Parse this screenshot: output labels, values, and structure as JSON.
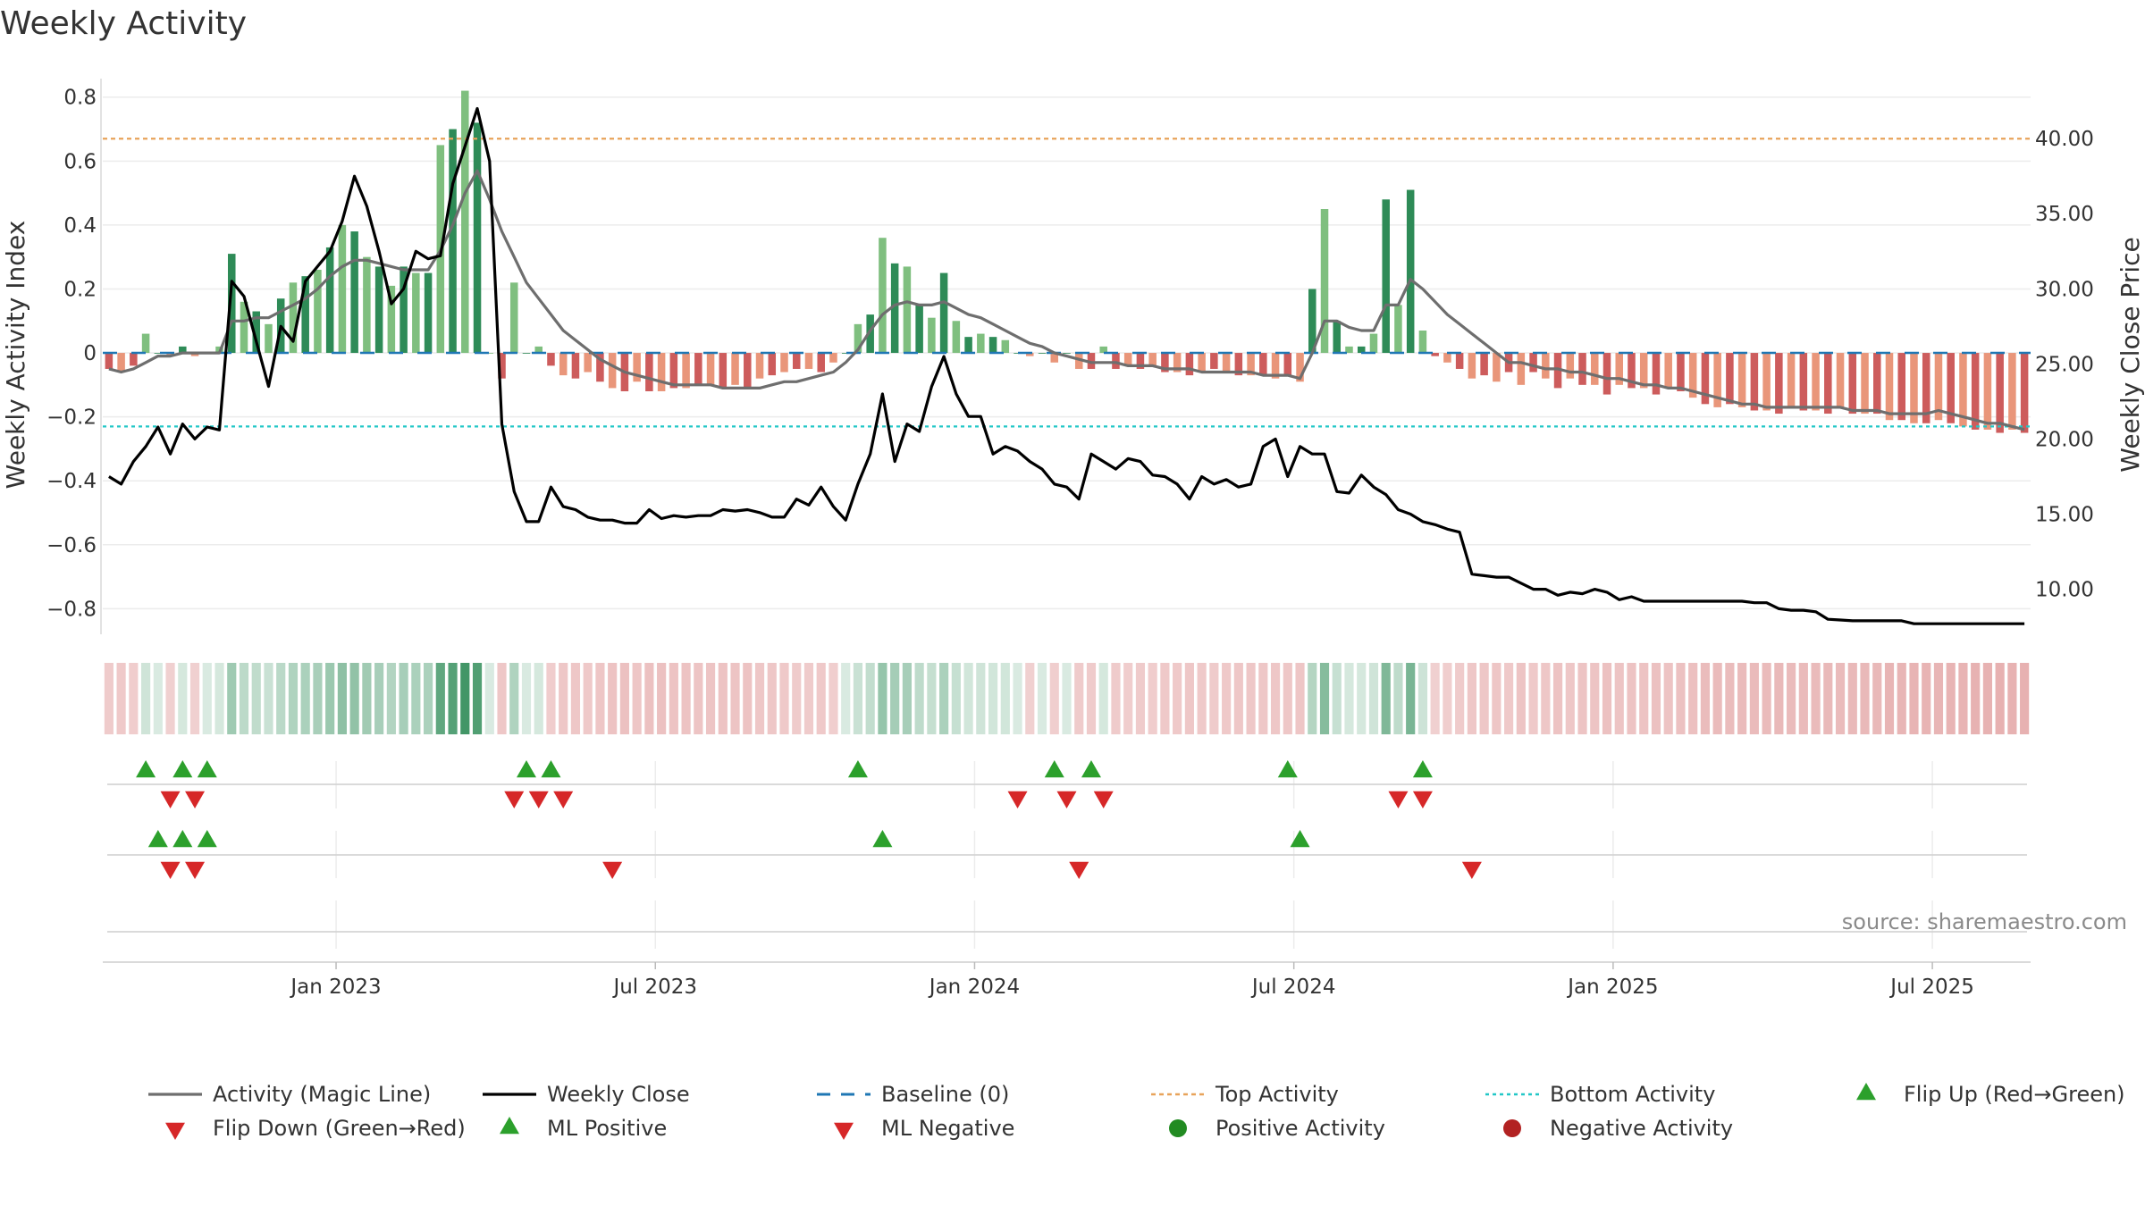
{
  "chart_data": {
    "type": "bar",
    "title": "Weekly Activity",
    "ylabel_left": "Weekly Activity Index",
    "ylabel_right": "Weekly Close Price",
    "ylim_left": [
      -0.88,
      0.83
    ],
    "ylim_right": [
      7.0,
      43.4
    ],
    "yticks_left": [
      {
        "v": 0.8,
        "label": "0.8"
      },
      {
        "v": 0.6,
        "label": "0.6"
      },
      {
        "v": 0.4,
        "label": "0.4"
      },
      {
        "v": 0.2,
        "label": "0.2"
      },
      {
        "v": 0,
        "label": "0"
      },
      {
        "v": -0.2,
        "label": "−0.2"
      },
      {
        "v": -0.4,
        "label": "−0.4"
      },
      {
        "v": -0.6,
        "label": "−0.6"
      },
      {
        "v": -0.8,
        "label": "−0.8"
      }
    ],
    "yticks_right": [
      {
        "v": 40,
        "label": "40.00"
      },
      {
        "v": 35,
        "label": "35.00"
      },
      {
        "v": 30,
        "label": "30.00"
      },
      {
        "v": 25,
        "label": "25.00"
      },
      {
        "v": 20,
        "label": "20.00"
      },
      {
        "v": 15,
        "label": "15.00"
      },
      {
        "v": 10,
        "label": "10.00"
      }
    ],
    "xticks": [
      {
        "week": 18.5,
        "label": "Jan 2023"
      },
      {
        "week": 44.5,
        "label": "Jul 2023"
      },
      {
        "week": 70.5,
        "label": "Jan 2024"
      },
      {
        "week": 96.5,
        "label": "Jul 2024"
      },
      {
        "week": 122.5,
        "label": "Jan 2025"
      },
      {
        "week": 148.5,
        "label": "Jul 2025"
      }
    ],
    "weeks": 157,
    "top_activity": 0.67,
    "bottom_activity": -0.23,
    "activity": [
      -0.05,
      -0.06,
      -0.04,
      0.06,
      0.0,
      -0.01,
      0.02,
      -0.01,
      0.0,
      0.02,
      0.31,
      0.16,
      0.13,
      0.09,
      0.17,
      0.22,
      0.24,
      0.26,
      0.33,
      0.4,
      0.38,
      0.3,
      0.27,
      0.21,
      0.27,
      0.25,
      0.25,
      0.65,
      0.7,
      0.82,
      0.72,
      0.0,
      -0.08,
      0.22,
      0.0,
      0.02,
      -0.04,
      -0.07,
      -0.08,
      -0.06,
      -0.09,
      -0.11,
      -0.12,
      -0.09,
      -0.12,
      -0.12,
      -0.11,
      -0.11,
      -0.1,
      -0.1,
      -0.11,
      -0.1,
      -0.11,
      -0.08,
      -0.07,
      -0.06,
      -0.05,
      -0.05,
      -0.06,
      -0.03,
      0.0,
      0.09,
      0.12,
      0.36,
      0.28,
      0.27,
      0.15,
      0.11,
      0.25,
      0.1,
      0.05,
      0.06,
      0.05,
      0.04,
      0.0,
      -0.01,
      0.0,
      -0.03,
      0.0,
      -0.05,
      -0.05,
      0.02,
      -0.05,
      -0.04,
      -0.05,
      -0.04,
      -0.06,
      -0.06,
      -0.07,
      -0.06,
      -0.05,
      -0.06,
      -0.07,
      -0.07,
      -0.07,
      -0.08,
      -0.07,
      -0.09,
      0.2,
      0.45,
      0.1,
      0.02,
      0.02,
      0.06,
      0.48,
      0.15,
      0.51,
      0.07,
      -0.01,
      -0.03,
      -0.05,
      -0.08,
      -0.07,
      -0.09,
      -0.06,
      -0.1,
      -0.06,
      -0.08,
      -0.11,
      -0.08,
      -0.1,
      -0.1,
      -0.13,
      -0.1,
      -0.11,
      -0.11,
      -0.13,
      -0.11,
      -0.12,
      -0.14,
      -0.16,
      -0.17,
      -0.16,
      -0.17,
      -0.18,
      -0.18,
      -0.19,
      -0.17,
      -0.18,
      -0.18,
      -0.19,
      -0.17,
      -0.19,
      -0.19,
      -0.19,
      -0.21,
      -0.21,
      -0.22,
      -0.22,
      -0.21,
      -0.22,
      -0.23,
      -0.24,
      -0.24,
      -0.25,
      -0.24,
      -0.25
    ],
    "magic_line": [
      -0.05,
      -0.06,
      -0.05,
      -0.03,
      -0.01,
      -0.01,
      0.0,
      0.0,
      0.0,
      0.0,
      0.1,
      0.1,
      0.11,
      0.11,
      0.13,
      0.15,
      0.17,
      0.2,
      0.24,
      0.27,
      0.29,
      0.29,
      0.28,
      0.27,
      0.26,
      0.26,
      0.26,
      0.32,
      0.4,
      0.5,
      0.57,
      0.48,
      0.38,
      0.3,
      0.22,
      0.17,
      0.12,
      0.07,
      0.04,
      0.01,
      -0.02,
      -0.04,
      -0.06,
      -0.07,
      -0.08,
      -0.09,
      -0.1,
      -0.1,
      -0.1,
      -0.1,
      -0.11,
      -0.11,
      -0.11,
      -0.11,
      -0.1,
      -0.09,
      -0.09,
      -0.08,
      -0.07,
      -0.06,
      -0.03,
      0.01,
      0.07,
      0.12,
      0.15,
      0.16,
      0.15,
      0.15,
      0.16,
      0.14,
      0.12,
      0.11,
      0.09,
      0.07,
      0.05,
      0.03,
      0.02,
      0.0,
      -0.01,
      -0.02,
      -0.03,
      -0.03,
      -0.03,
      -0.04,
      -0.04,
      -0.04,
      -0.05,
      -0.05,
      -0.05,
      -0.06,
      -0.06,
      -0.06,
      -0.06,
      -0.06,
      -0.07,
      -0.07,
      -0.07,
      -0.08,
      0.0,
      0.1,
      0.1,
      0.08,
      0.07,
      0.07,
      0.15,
      0.15,
      0.23,
      0.2,
      0.16,
      0.12,
      0.09,
      0.06,
      0.03,
      0.0,
      -0.03,
      -0.03,
      -0.04,
      -0.05,
      -0.05,
      -0.06,
      -0.06,
      -0.07,
      -0.08,
      -0.08,
      -0.09,
      -0.1,
      -0.1,
      -0.11,
      -0.11,
      -0.12,
      -0.13,
      -0.14,
      -0.15,
      -0.16,
      -0.16,
      -0.17,
      -0.17,
      -0.17,
      -0.17,
      -0.17,
      -0.17,
      -0.17,
      -0.18,
      -0.18,
      -0.18,
      -0.19,
      -0.19,
      -0.19,
      -0.19,
      -0.18,
      -0.19,
      -0.2,
      -0.21,
      -0.22,
      -0.22,
      -0.23,
      -0.24
    ],
    "weekly_close": [
      17.5,
      17.0,
      18.5,
      19.5,
      20.8,
      19.0,
      21.0,
      20.0,
      20.8,
      20.6,
      30.5,
      29.5,
      26.5,
      23.5,
      27.5,
      26.5,
      30.5,
      31.5,
      32.5,
      34.5,
      37.5,
      35.5,
      32.5,
      29.0,
      30.0,
      32.5,
      32.0,
      32.2,
      37.0,
      39.5,
      42.0,
      38.5,
      21.0,
      16.5,
      14.5,
      14.5,
      16.8,
      15.5,
      15.3,
      14.8,
      14.6,
      14.6,
      14.4,
      14.4,
      15.3,
      14.7,
      14.9,
      14.8,
      14.9,
      14.9,
      15.3,
      15.2,
      15.3,
      15.1,
      14.8,
      14.8,
      16.0,
      15.6,
      16.8,
      15.5,
      14.6,
      17.0,
      19.0,
      23.0,
      18.5,
      21.0,
      20.5,
      23.5,
      25.5,
      23.0,
      21.5,
      21.5,
      19.0,
      19.5,
      19.2,
      18.5,
      18.0,
      17.0,
      16.8,
      16.0,
      19.0,
      18.5,
      18.0,
      18.7,
      18.5,
      17.6,
      17.5,
      17.0,
      16.0,
      17.5,
      17.0,
      17.3,
      16.8,
      17.0,
      19.5,
      20.0,
      17.5,
      19.5,
      19.0,
      19.0,
      16.5,
      16.4,
      17.6,
      16.8,
      16.3,
      15.3,
      15.0,
      14.5,
      14.3,
      14.0,
      13.8,
      11.0,
      10.9,
      10.8,
      10.8,
      10.4,
      10.0,
      10.0,
      9.6,
      9.8,
      9.7,
      10.0,
      9.8,
      9.3,
      9.5,
      9.2,
      9.2,
      9.2,
      9.2,
      9.2,
      9.2,
      9.2,
      9.2,
      9.2,
      9.1,
      9.1,
      8.7,
      8.6,
      8.6,
      8.5,
      8.0,
      7.95,
      7.9,
      7.9,
      7.9,
      7.9,
      7.9,
      7.7,
      7.7,
      7.7,
      7.7,
      7.7,
      7.7,
      7.7,
      7.7,
      7.7,
      7.7
    ],
    "flip_row1_up": [
      3,
      6,
      8,
      34,
      36,
      61,
      77,
      80,
      96,
      107
    ],
    "flip_row1_down": [
      5,
      7,
      33,
      35,
      37,
      74,
      78,
      81,
      105,
      107
    ],
    "flip_row2_up": [
      4,
      6,
      8,
      63,
      97
    ],
    "flip_row2_down": [
      5,
      7,
      41,
      79,
      111
    ],
    "legend": [
      {
        "key": "magic",
        "label": "Activity (Magic Line)"
      },
      {
        "key": "close",
        "label": "Weekly Close"
      },
      {
        "key": "baseline",
        "label": "Baseline (0)"
      },
      {
        "key": "top",
        "label": "Top Activity"
      },
      {
        "key": "bottom",
        "label": "Bottom Activity"
      },
      {
        "key": "flipup",
        "label": "Flip Up (Red→Green)"
      },
      {
        "key": "flipdown",
        "label": "Flip Down (Green→Red)"
      },
      {
        "key": "mlpos",
        "label": "ML Positive"
      },
      {
        "key": "mlneg",
        "label": "ML Negative"
      },
      {
        "key": "posact",
        "label": "Positive Activity"
      },
      {
        "key": "negact",
        "label": "Negative Activity"
      }
    ],
    "source": "source: sharemaestro.com"
  },
  "colors": {
    "pos_strong": "#2e8b57",
    "pos_light": "#7fbf7f",
    "neg_strong": "#cd5c5c",
    "neg_light": "#e9967a",
    "magic": "#6e6e6e",
    "close": "#000000",
    "baseline": "#1f77b4",
    "top": "#e8a35a",
    "bottom": "#22c7c7",
    "up": "#2ca02c",
    "down": "#d62728",
    "posdot": "#228b22",
    "negdot": "#b22222"
  }
}
